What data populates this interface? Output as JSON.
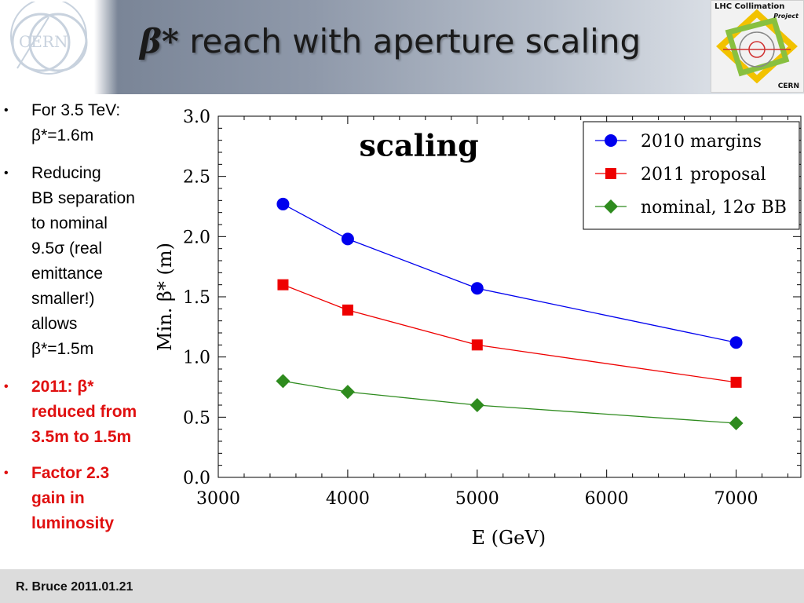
{
  "slide": {
    "title_symbol": "β*",
    "title_text": " reach with aperture scaling",
    "cern_logo_text": "CERN",
    "lhc_logo": {
      "line1": "LHC Collimation",
      "line2": "Project",
      "line3": "CERN"
    },
    "footer": "R. Bruce 2011.01.21"
  },
  "bullets": [
    {
      "lines": [
        "For 3.5 TeV:",
        "β*=1.6m"
      ],
      "color": "#000000"
    },
    {
      "lines": [
        "Reducing",
        "BB separation",
        "to  nominal",
        "9.5σ (real",
        "emittance",
        "smaller!)",
        "allows",
        "β*=1.5m"
      ],
      "color": "#000000"
    },
    {
      "lines": [
        "2011: β*",
        "reduced from",
        "3.5m to 1.5m"
      ],
      "color": "#e01010"
    },
    {
      "lines": [
        "Factor 2.3",
        "gain in",
        "luminosity"
      ],
      "color": "#e01010"
    }
  ],
  "chart_data": {
    "type": "line",
    "annotation": "scaling",
    "xlabel": "E (GeV)",
    "ylabel": "Min. β* (m)",
    "xlim": [
      3000,
      7500
    ],
    "ylim": [
      0,
      3.0
    ],
    "x_ticks": [
      "3000",
      "4000",
      "5000",
      "6000",
      "7000"
    ],
    "y_ticks": [
      "0.0",
      "0.5",
      "1.0",
      "1.5",
      "2.0",
      "2.5",
      "3.0"
    ],
    "x": [
      3500,
      4000,
      5000,
      7000
    ],
    "legend_position": "top-right",
    "series": [
      {
        "name": "2010 margins",
        "values": [
          2.27,
          1.98,
          1.57,
          1.12
        ],
        "color": "#0000ee",
        "marker": "circle"
      },
      {
        "name": "2011 proposal",
        "values": [
          1.6,
          1.39,
          1.1,
          0.79
        ],
        "color": "#ee0000",
        "marker": "square"
      },
      {
        "name": "nominal, 12σ BB",
        "values": [
          0.8,
          0.71,
          0.6,
          0.45
        ],
        "color": "#2e8b1e",
        "marker": "diamond"
      }
    ]
  }
}
